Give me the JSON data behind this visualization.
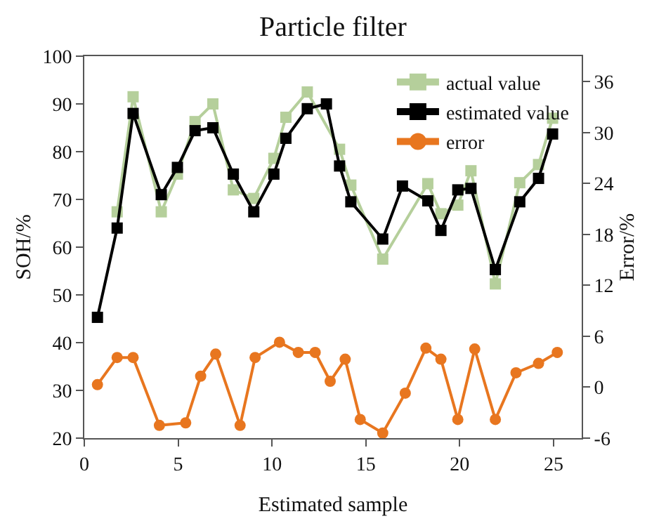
{
  "chart_data": {
    "type": "line",
    "title": "Particle filter",
    "xlabel": "Estimated sample",
    "ylabel": "SOH/%",
    "y2label": "Error/%",
    "xlim": [
      0,
      26.5
    ],
    "xticks": [
      0,
      5,
      10,
      15,
      20,
      25
    ],
    "ylim": [
      20,
      100
    ],
    "yticks": [
      20,
      30,
      40,
      50,
      60,
      70,
      80,
      90,
      100
    ],
    "y2lim": [
      -6,
      39
    ],
    "y2ticks": [
      -6,
      0,
      6,
      12,
      18,
      24,
      30,
      36
    ],
    "legend": "top right",
    "line_style": "solid",
    "series": [
      {
        "name": "actual value",
        "color": "#b5cf9b",
        "marker": "square",
        "x": [
          1.75,
          2.6,
          4.1,
          4.96,
          5.9,
          6.85,
          7.94,
          9.03,
          10.1,
          10.74,
          11.88,
          12.9,
          13.6,
          14.2,
          15.9,
          16.95,
          18.3,
          19.0,
          19.9,
          20.6,
          21.9,
          23.2,
          24.2,
          24.95
        ],
        "values": [
          67.4,
          91.5,
          67.4,
          75.3,
          86.3,
          90,
          72,
          70.2,
          78.6,
          87.2,
          92.5,
          null,
          80.5,
          73,
          57.5,
          null,
          73.3,
          67,
          68.8,
          76,
          52.3,
          73.5,
          77.3,
          87
        ]
      },
      {
        "name": "estimated value",
        "color": "#000000",
        "marker": "square",
        "x": [
          0.7,
          1.75,
          2.6,
          4.1,
          4.96,
          5.9,
          6.85,
          7.94,
          9.03,
          10.1,
          10.74,
          11.88,
          12.9,
          13.6,
          14.2,
          15.9,
          16.95,
          18.3,
          19.0,
          19.9,
          20.6,
          21.9,
          23.2,
          24.2,
          24.95
        ],
        "values": [
          45.3,
          64,
          88,
          71,
          76.7,
          84.4,
          85,
          75.3,
          67.4,
          75.3,
          82.8,
          89,
          90,
          77,
          69.5,
          61.7,
          72.8,
          69.7,
          63.5,
          72,
          72.3,
          55.3,
          69.5,
          74.4,
          83.7
        ]
      },
      {
        "name": "error",
        "color": "#e8761f",
        "marker": "circle",
        "axis": "y2",
        "x": [
          0.7,
          1.75,
          2.6,
          4.0,
          5.4,
          6.2,
          7.0,
          8.3,
          9.1,
          10.4,
          11.4,
          12.3,
          13.1,
          13.9,
          14.7,
          15.9,
          17.1,
          18.2,
          19.0,
          19.9,
          20.8,
          21.9,
          23.0,
          24.2,
          25.2
        ],
        "values": [
          0.3,
          3.5,
          3.5,
          -4.5,
          -4.2,
          1.3,
          3.9,
          -4.5,
          3.5,
          5.3,
          4.1,
          4.1,
          0.7,
          3.3,
          -3.8,
          -5.4,
          -0.7,
          4.6,
          3.3,
          -3.8,
          4.5,
          -3.8,
          1.7,
          2.8,
          4.1
        ]
      }
    ]
  }
}
